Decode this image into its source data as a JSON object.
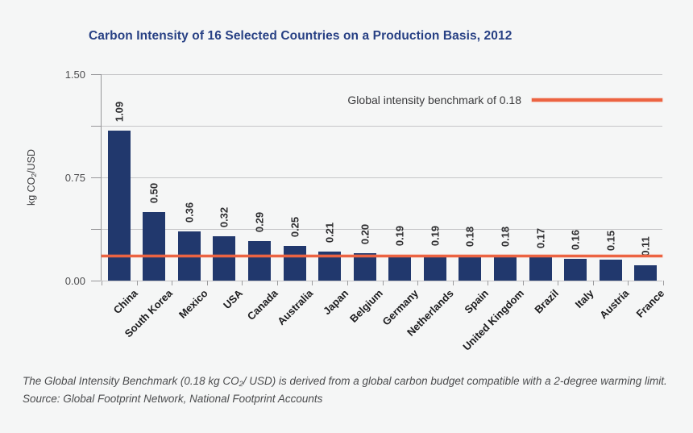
{
  "title": "Carbon Intensity of 16 Selected Countries on a Production Basis, 2012",
  "colors": {
    "background": "#f5f6f6",
    "title": "#274084",
    "bar": "#21386d",
    "benchmark": "#ec6342"
  },
  "chart_data": {
    "type": "bar",
    "title": "Carbon Intensity of 16 Selected Countries on a Production Basis, 2012",
    "categories": [
      "China",
      "South Korea",
      "Mexico",
      "USA",
      "Canada",
      "Australia",
      "Japan",
      "Belgium",
      "Germany",
      "Netherlands",
      "Spain",
      "United Kingdom",
      "Brazil",
      "Italy",
      "Austria",
      "France"
    ],
    "values": [
      1.09,
      0.5,
      0.36,
      0.32,
      0.29,
      0.25,
      0.21,
      0.2,
      0.19,
      0.19,
      0.18,
      0.18,
      0.17,
      0.16,
      0.15,
      0.11
    ],
    "value_labels": [
      "1.09",
      "0.50",
      "0.36",
      "0.32",
      "0.29",
      "0.25",
      "0.21",
      "0.20",
      "0.19",
      "0.19",
      "0.18",
      "0.18",
      "0.17",
      "0.16",
      "0.15",
      "0.11"
    ],
    "xlabel": "",
    "ylabel": "kg CO2/USD",
    "ylabel_parts": {
      "pre": "kg CO",
      "sub": "2",
      "post": "/USD"
    },
    "ylim": [
      0,
      1.5
    ],
    "yticks": [
      {
        "value": 1.5,
        "label": "1.50"
      },
      {
        "value": 0.75,
        "label": "0.75"
      },
      {
        "value": 0.0,
        "label": "0.00"
      }
    ],
    "gridline_values": [
      1.5,
      1.125,
      0.75,
      0.375,
      0
    ],
    "grid": "horizontal",
    "benchmark": {
      "value": 0.18,
      "label": "Global intensity benchmark of 0.18"
    },
    "legend_position": "top-right",
    "bar_color": "#21386d",
    "benchmark_color": "#ec6342"
  },
  "footer": {
    "note_parts": {
      "pre": "The Global Intensity Benchmark (0.18 kg CO",
      "sub": "2",
      "post": "/ USD) is derived from a global carbon budget compatible with a 2-degree warming limit."
    },
    "source": "Source: Global Footprint Network, National Footprint Accounts"
  }
}
